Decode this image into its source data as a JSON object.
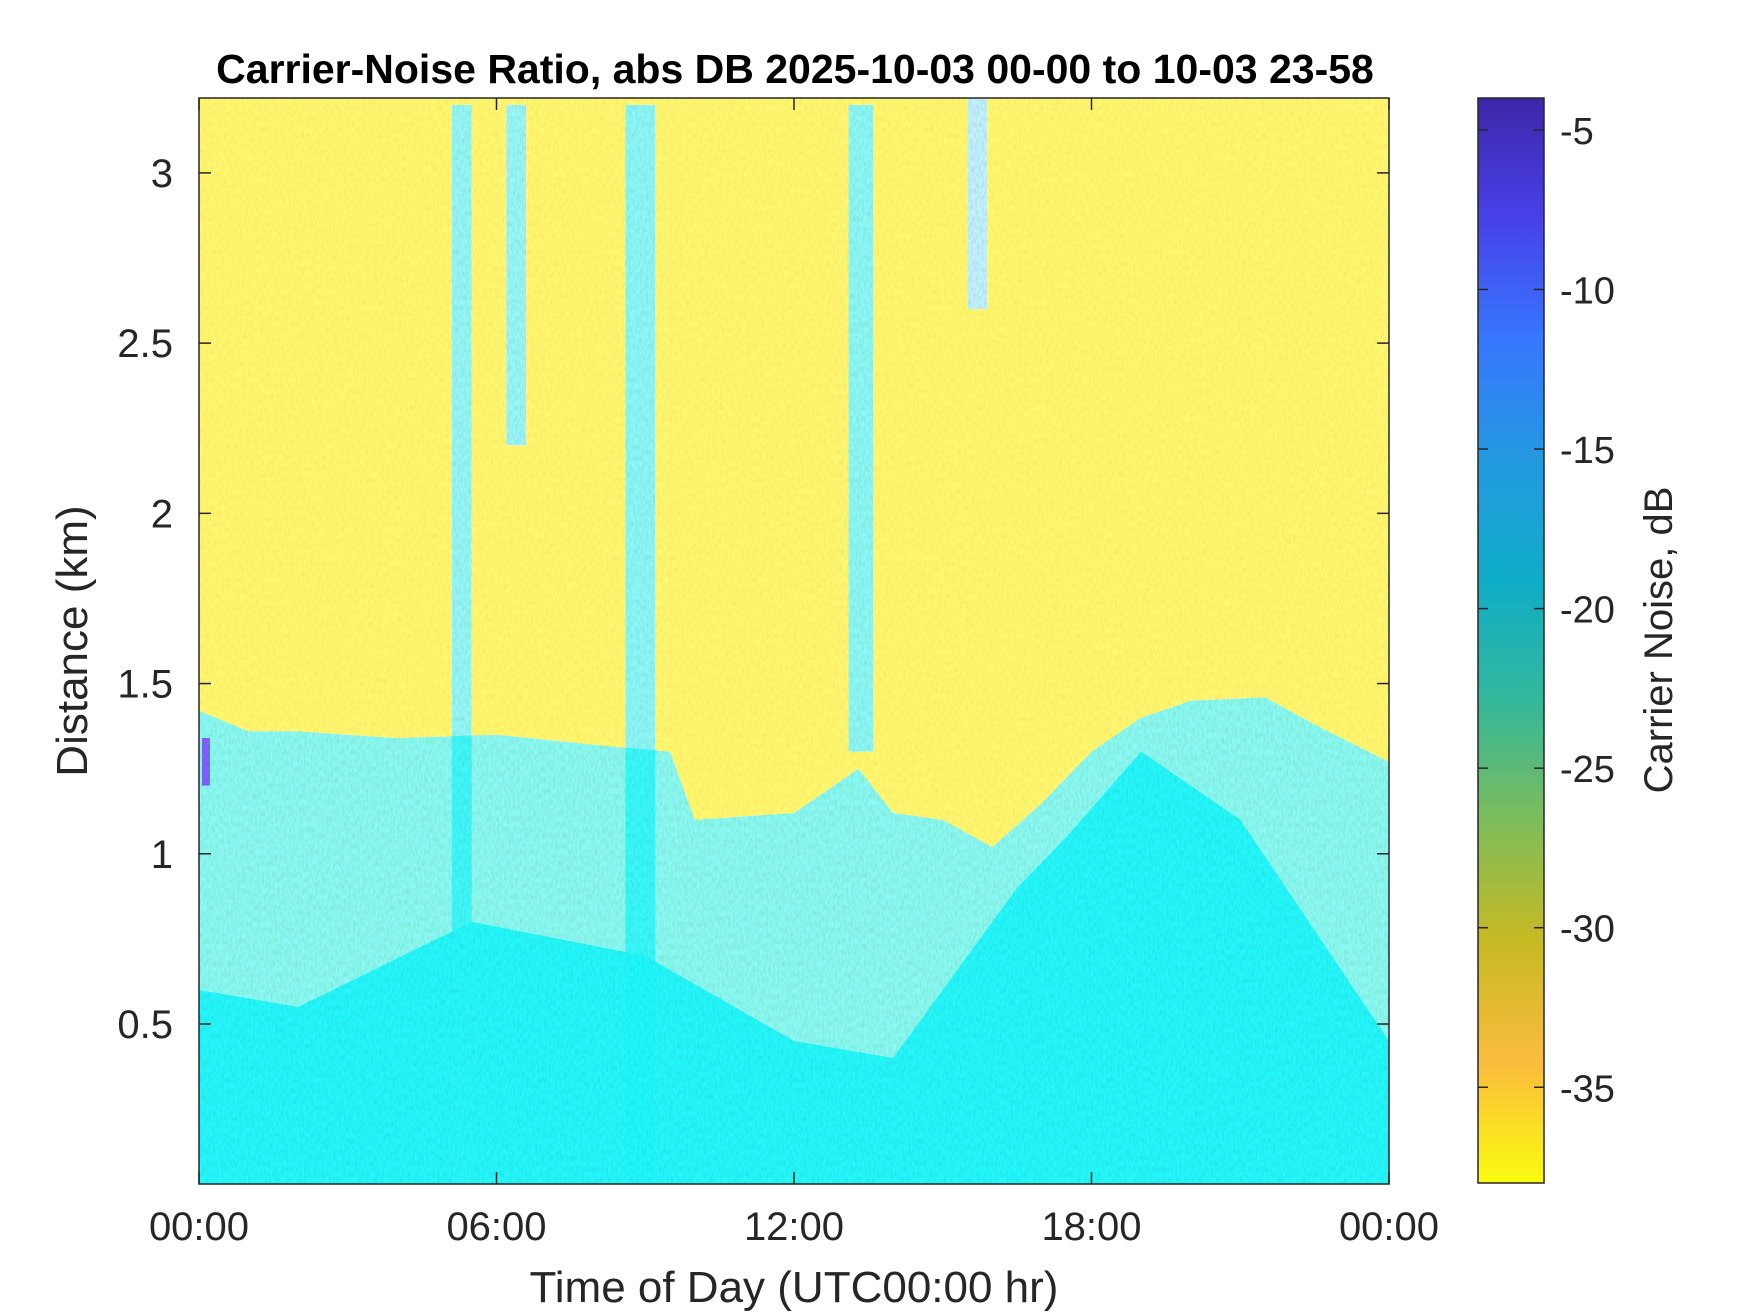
{
  "chart_data": {
    "type": "heatmap",
    "title": "Carrier-Noise Ratio, abs DB 2025-10-03 00-00 to 10-03 23-58",
    "xlabel": "Time of Day (UTC00:00 hr)",
    "ylabel": "Distance (km)",
    "xlim": [
      0,
      24
    ],
    "ylim": [
      0.03,
      3.22
    ],
    "x_ticks": [
      0,
      6,
      12,
      18,
      24
    ],
    "x_tick_labels": [
      "00:00",
      "06:00",
      "12:00",
      "18:00",
      "00:00"
    ],
    "y_ticks": [
      0.5,
      1,
      1.5,
      2,
      2.5,
      3
    ],
    "y_tick_labels": [
      "0.5",
      "1",
      "1.5",
      "2",
      "2.5",
      "3"
    ],
    "colorbar": {
      "label": "Carrier Noise, dB",
      "range": [
        -38,
        -4
      ],
      "ticks": [
        -35,
        -30,
        -25,
        -20,
        -15,
        -10,
        -5
      ],
      "tick_labels": [
        "-35",
        "-30",
        "-25",
        "-20",
        "-15",
        "-10",
        "-5"
      ],
      "colormap": [
        "#f9fb0e",
        "#fbbc3d",
        "#c7ba23",
        "#7ebc5a",
        "#33b89b",
        "#0fadc8",
        "#2399e0",
        "#3777fe",
        "#4741e8",
        "#3e26a8"
      ]
    },
    "boundary_layer_top_km": [
      {
        "t": 0,
        "km": 1.42
      },
      {
        "t": 1,
        "km": 1.36
      },
      {
        "t": 2,
        "km": 1.36
      },
      {
        "t": 4,
        "km": 1.34
      },
      {
        "t": 6,
        "km": 1.35
      },
      {
        "t": 8,
        "km": 1.32
      },
      {
        "t": 9.5,
        "km": 1.3
      },
      {
        "t": 10,
        "km": 1.1
      },
      {
        "t": 12,
        "km": 1.12
      },
      {
        "t": 13.3,
        "km": 1.25
      },
      {
        "t": 14,
        "km": 1.12
      },
      {
        "t": 15,
        "km": 1.1
      },
      {
        "t": 16,
        "km": 1.02
      },
      {
        "t": 17,
        "km": 1.15
      },
      {
        "t": 18,
        "km": 1.3
      },
      {
        "t": 19,
        "km": 1.4
      },
      {
        "t": 20,
        "km": 1.45
      },
      {
        "t": 21.5,
        "km": 1.46
      },
      {
        "t": 22.5,
        "km": 1.38
      },
      {
        "t": 24,
        "km": 1.27
      }
    ],
    "low_cnr_region_top_km": [
      {
        "t": 0,
        "km": 0.6
      },
      {
        "t": 2,
        "km": 0.55
      },
      {
        "t": 5.5,
        "km": 0.8
      },
      {
        "t": 9,
        "km": 0.7
      },
      {
        "t": 12,
        "km": 0.45
      },
      {
        "t": 14,
        "km": 0.4
      },
      {
        "t": 15,
        "km": 0.6
      },
      {
        "t": 16.5,
        "km": 0.9
      },
      {
        "t": 17.5,
        "km": 1.05
      },
      {
        "t": 19,
        "km": 1.3
      },
      {
        "t": 21,
        "km": 1.1
      },
      {
        "t": 24,
        "km": 0.45
      }
    ],
    "plumes": [
      {
        "t_start": 5.1,
        "t_end": 5.5,
        "km_top": 3.2,
        "km_bottom": 0.03,
        "cnr": -18
      },
      {
        "t_start": 6.2,
        "t_end": 6.6,
        "km_top": 3.2,
        "km_bottom": 2.2,
        "cnr": -17
      },
      {
        "t_start": 8.6,
        "t_end": 9.2,
        "km_top": 3.2,
        "km_bottom": 0.03,
        "cnr": -19
      },
      {
        "t_start": 13.1,
        "t_end": 13.6,
        "km_top": 3.2,
        "km_bottom": 1.3,
        "cnr": -19
      },
      {
        "t_start": 15.5,
        "t_end": 15.9,
        "km_top": 3.22,
        "km_bottom": 2.6,
        "cnr": -12
      }
    ],
    "annotations": [
      {
        "t": 0.1,
        "km": 1.27,
        "cnr": -6
      }
    ]
  }
}
